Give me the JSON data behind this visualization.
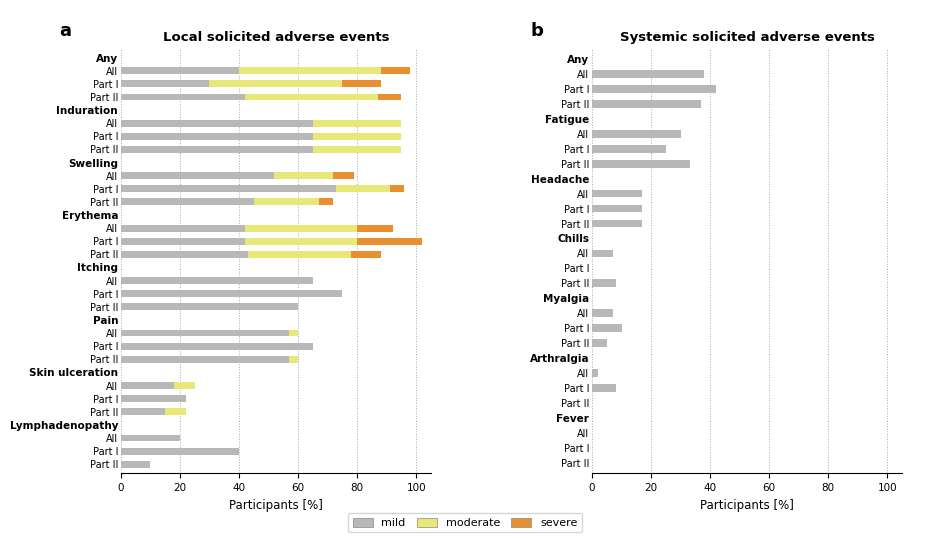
{
  "local": {
    "title": "Local solicited adverse events",
    "groups": [
      "Any",
      "Induration",
      "Swelling",
      "Erythema",
      "Itching",
      "Pain",
      "Skin ulceration",
      "Lymphadenopathy"
    ],
    "data": {
      "Any": {
        "All": [
          40,
          48,
          10
        ],
        "Part I": [
          30,
          45,
          13
        ],
        "Part II": [
          42,
          45,
          8
        ]
      },
      "Induration": {
        "All": [
          65,
          30,
          0
        ],
        "Part I": [
          65,
          30,
          0
        ],
        "Part II": [
          65,
          30,
          0
        ]
      },
      "Swelling": {
        "All": [
          52,
          20,
          7
        ],
        "Part I": [
          73,
          18,
          5
        ],
        "Part II": [
          45,
          22,
          5
        ]
      },
      "Erythema": {
        "All": [
          42,
          38,
          12
        ],
        "Part I": [
          42,
          38,
          22
        ],
        "Part II": [
          43,
          35,
          10
        ]
      },
      "Itching": {
        "All": [
          65,
          0,
          0
        ],
        "Part I": [
          75,
          0,
          0
        ],
        "Part II": [
          60,
          0,
          0
        ]
      },
      "Pain": {
        "All": [
          57,
          3,
          0
        ],
        "Part I": [
          65,
          0,
          0
        ],
        "Part II": [
          57,
          3,
          0
        ]
      },
      "Skin ulceration": {
        "All": [
          18,
          7,
          0
        ],
        "Part I": [
          22,
          0,
          0
        ],
        "Part II": [
          15,
          7,
          0
        ]
      },
      "Lymphadenopathy": {
        "All": [
          20,
          0,
          0
        ],
        "Part I": [
          40,
          0,
          0
        ],
        "Part II": [
          10,
          0,
          0
        ]
      }
    }
  },
  "systemic": {
    "title": "Systemic solicited adverse events",
    "groups": [
      "Any",
      "Fatigue",
      "Headache",
      "Chills",
      "Myalgia",
      "Arthralgia",
      "Fever"
    ],
    "data": {
      "Any": {
        "All": [
          38,
          0,
          0
        ],
        "Part I": [
          42,
          0,
          0
        ],
        "Part II": [
          37,
          0,
          0
        ]
      },
      "Fatigue": {
        "All": [
          30,
          0,
          0
        ],
        "Part I": [
          25,
          0,
          0
        ],
        "Part II": [
          33,
          0,
          0
        ]
      },
      "Headache": {
        "All": [
          17,
          0,
          0
        ],
        "Part I": [
          17,
          0,
          0
        ],
        "Part II": [
          17,
          0,
          0
        ]
      },
      "Chills": {
        "All": [
          7,
          0,
          0
        ],
        "Part I": [
          0,
          0,
          0
        ],
        "Part II": [
          8,
          0,
          0
        ]
      },
      "Myalgia": {
        "All": [
          7,
          0,
          0
        ],
        "Part I": [
          10,
          0,
          0
        ],
        "Part II": [
          5,
          0,
          0
        ]
      },
      "Arthralgia": {
        "All": [
          2,
          0,
          0
        ],
        "Part I": [
          8,
          0,
          0
        ],
        "Part II": [
          0,
          0,
          0
        ]
      },
      "Fever": {
        "All": [
          0,
          0,
          0
        ],
        "Part I": [
          0,
          0,
          0
        ],
        "Part II": [
          0,
          0,
          0
        ]
      }
    }
  },
  "colors": {
    "mild": "#b8b8b8",
    "moderate": "#e8e878",
    "severe": "#e89030"
  },
  "xlabel": "Participants [%]",
  "xlim": [
    0,
    105
  ],
  "xticks": [
    0,
    20,
    40,
    60,
    80,
    100
  ]
}
